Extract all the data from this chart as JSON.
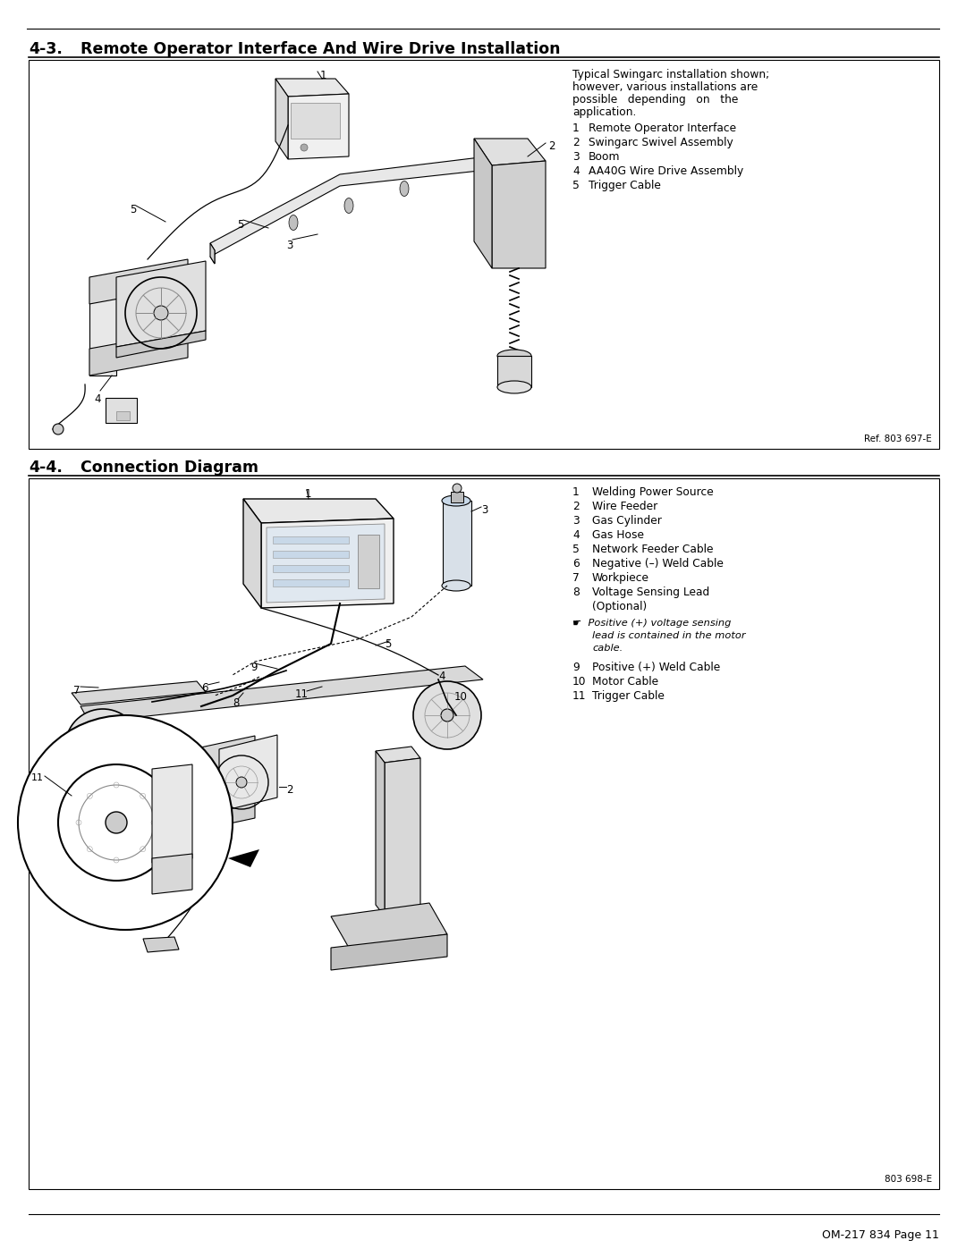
{
  "page_bg": "#ffffff",
  "footer": "OM-217 834 Page 11",
  "ref_43": "Ref. 803 697-E",
  "ref_44": "803 698-E",
  "title_43_num": "4-3.",
  "title_43_text": "Remote Operator Interface And Wire Drive Installation",
  "title_44_num": "4-4.",
  "title_44_text": "Connection Diagram",
  "section43_note_lines": [
    "Typical Swingarc installation shown;",
    "however, various installations are",
    "possible   depending   on   the",
    "application."
  ],
  "section43_items": [
    [
      "1",
      "Remote Operator Interface"
    ],
    [
      "2",
      "Swingarc Swivel Assembly"
    ],
    [
      "3",
      "Boom"
    ],
    [
      "4",
      "AA40G Wire Drive Assembly"
    ],
    [
      "5",
      "Trigger Cable"
    ]
  ],
  "section44_items": [
    [
      "1",
      "Welding Power Source"
    ],
    [
      "2",
      "Wire Feeder"
    ],
    [
      "3",
      "Gas Cylinder"
    ],
    [
      "4",
      "Gas Hose"
    ],
    [
      "5",
      "Network Feeder Cable"
    ],
    [
      "6",
      "Negative (–) Weld Cable"
    ],
    [
      "7",
      "Workpiece"
    ],
    [
      "8",
      "Voltage Sensing Lead"
    ],
    [
      "",
      "(Optional)"
    ]
  ],
  "section44_note_lines": [
    "☛  Positive (+) voltage sensing",
    "lead is contained in the motor",
    "cable."
  ],
  "section44_items2": [
    [
      "9",
      "Positive (+) Weld Cable"
    ],
    [
      "10",
      "Motor Cable"
    ],
    [
      "11",
      "Trigger Cable"
    ]
  ]
}
